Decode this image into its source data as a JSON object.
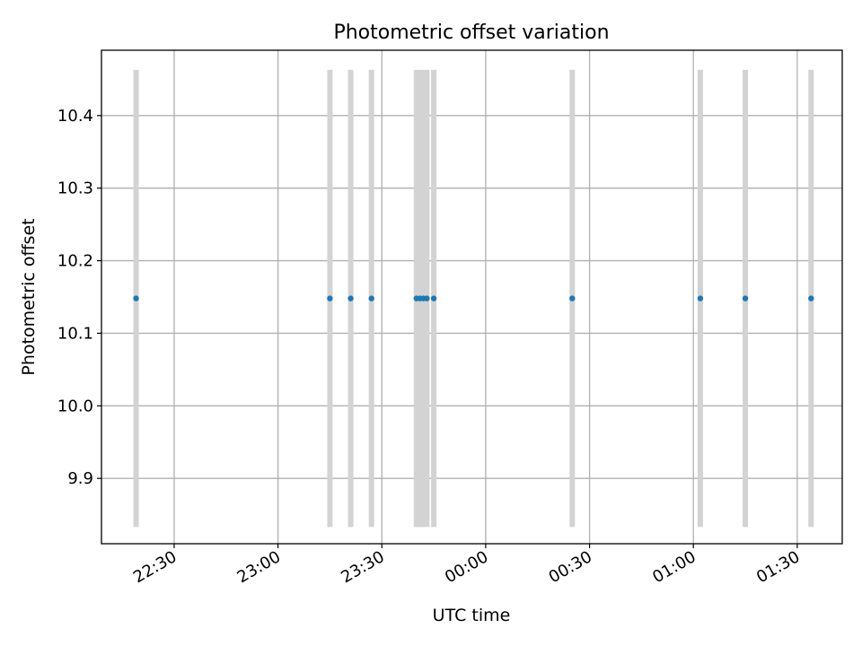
{
  "chart_data": {
    "type": "scatter",
    "title": "Photometric offset variation",
    "xlabel": "UTC time",
    "ylabel": "Photometric offset",
    "xlim": [
      "22:09",
      "01:43"
    ],
    "ylim": [
      9.81,
      10.49
    ],
    "x_ticks": [
      "22:30",
      "23:00",
      "23:30",
      "00:00",
      "00:30",
      "01:00",
      "01:30"
    ],
    "y_ticks": [
      "9.9",
      "10.0",
      "10.1",
      "10.2",
      "10.3",
      "10.4"
    ],
    "grid": true,
    "point_color": "#1f77b4",
    "errorbar_color": "#d3d3d3",
    "points": [
      {
        "x": "22:19",
        "y": 10.148,
        "yerr": 0.315
      },
      {
        "x": "23:15",
        "y": 10.148,
        "yerr": 0.315
      },
      {
        "x": "23:21",
        "y": 10.148,
        "yerr": 0.315
      },
      {
        "x": "23:27",
        "y": 10.148,
        "yerr": 0.315
      },
      {
        "x": "23:40",
        "y": 10.148,
        "yerr": 0.315
      },
      {
        "x": "23:41",
        "y": 10.148,
        "yerr": 0.315
      },
      {
        "x": "23:42",
        "y": 10.148,
        "yerr": 0.315
      },
      {
        "x": "23:43",
        "y": 10.148,
        "yerr": 0.315
      },
      {
        "x": "23:45",
        "y": 10.148,
        "yerr": 0.315
      },
      {
        "x": "00:25",
        "y": 10.148,
        "yerr": 0.315
      },
      {
        "x": "01:02",
        "y": 10.148,
        "yerr": 0.315
      },
      {
        "x": "01:15",
        "y": 10.148,
        "yerr": 0.315
      },
      {
        "x": "01:34",
        "y": 10.148,
        "yerr": 0.315
      }
    ]
  }
}
